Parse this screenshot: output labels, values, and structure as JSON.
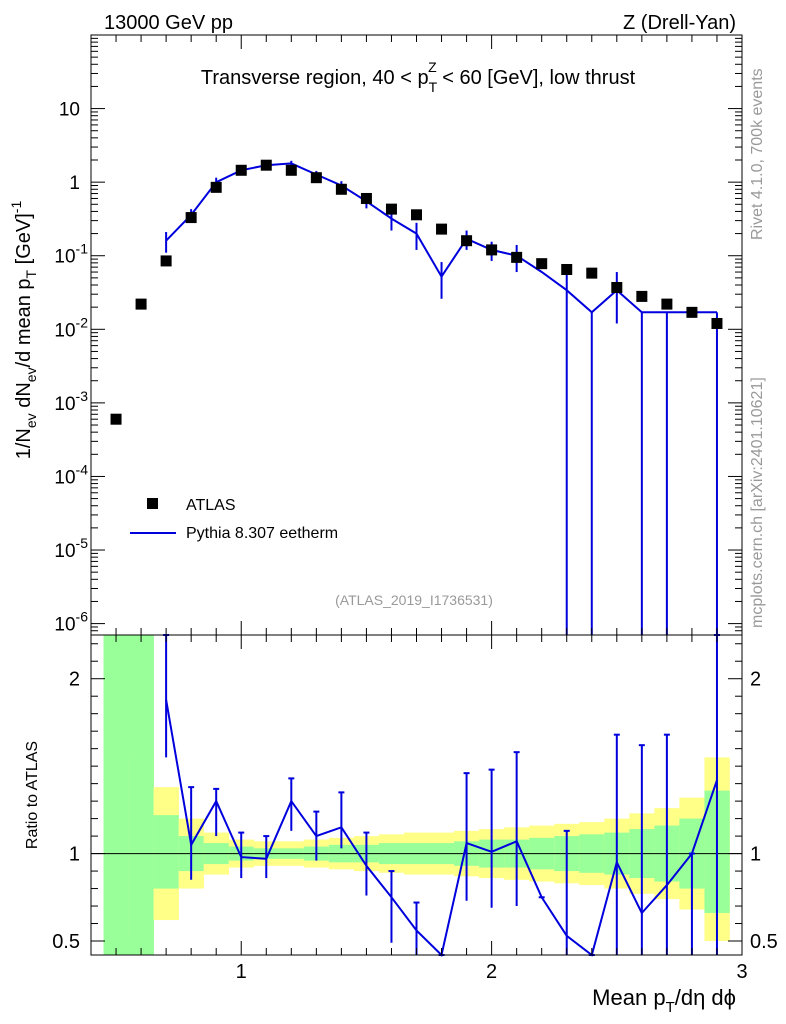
{
  "header": {
    "left": "13000 GeV pp",
    "right": "Z (Drell-Yan)"
  },
  "side_labels": {
    "rivet": "Rivet 4.1.0,  700k events",
    "mcplots": "mcplots.cern.ch [arXiv:2401.10621]"
  },
  "chart_data": [
    {
      "type": "scatter",
      "panel": "main",
      "title": "Transverse region, 40 < p_T^Z < 60 [GeV], low thrust",
      "title_parts": {
        "pre": "Transverse region, 40 < p",
        "sub": "T",
        "sup": "Z",
        "post": " < 60 [GeV], low thrust"
      },
      "watermark": "(ATLAS_2019_I1736531)",
      "ylabel": "1/N_ev dN_ev/d mean p_T [GeV]^-1",
      "ylabel_parts": {
        "a": "1/N",
        "a_sub": "ev",
        "b": " dN",
        "b_sub": "ev",
        "c": "/d mean p",
        "c_sub": "T",
        "d": " [GeV]",
        "d_sup": "-1"
      },
      "xlim": [
        0.4,
        3.0
      ],
      "ylim": [
        7e-07,
        100
      ],
      "yscale": "log",
      "ytick_labels": [
        {
          "base": "10",
          "exp": "-6"
        },
        {
          "base": "10",
          "exp": "-5"
        },
        {
          "base": "10",
          "exp": "-4"
        },
        {
          "base": "10",
          "exp": "-3"
        },
        {
          "base": "10",
          "exp": "-2"
        },
        {
          "base": "10",
          "exp": "-1"
        },
        {
          "base": "1",
          "exp": ""
        },
        {
          "base": "10",
          "exp": ""
        }
      ],
      "legend": [
        {
          "name": "ATLAS",
          "marker": "square",
          "color": "#000000"
        },
        {
          "name": "Pythia 8.307 eetherm",
          "marker": "line",
          "color": "#0000dd"
        }
      ],
      "series": [
        {
          "name": "ATLAS",
          "x": [
            0.5,
            0.6,
            0.7,
            0.8,
            0.9,
            1.0,
            1.1,
            1.2,
            1.3,
            1.4,
            1.5,
            1.6,
            1.7,
            1.8,
            1.9,
            2.0,
            2.1,
            2.2,
            2.3,
            2.4,
            2.5,
            2.6,
            2.7,
            2.8,
            2.9
          ],
          "y": [
            0.0006,
            0.022,
            0.085,
            0.33,
            0.85,
            1.45,
            1.7,
            1.45,
            1.15,
            0.8,
            0.6,
            0.43,
            0.36,
            0.23,
            0.16,
            0.12,
            0.095,
            0.078,
            0.065,
            0.058,
            0.037,
            0.028,
            0.022,
            0.017,
            0.012
          ]
        },
        {
          "name": "Pythia 8.307 eetherm",
          "x": [
            0.7,
            0.8,
            0.9,
            1.0,
            1.1,
            1.2,
            1.3,
            1.4,
            1.5,
            1.6,
            1.7,
            1.8,
            1.9,
            2.0,
            2.1,
            2.2,
            2.3,
            2.4,
            2.5,
            2.6,
            2.7,
            2.8,
            2.9
          ],
          "y": [
            0.16,
            0.36,
            1.0,
            1.45,
            1.7,
            1.8,
            1.27,
            0.9,
            0.55,
            0.32,
            0.2,
            0.052,
            0.17,
            0.12,
            0.1,
            0.06,
            0.034,
            0.017,
            0.034,
            0.017,
            0.017,
            0.017,
            0.017
          ],
          "err_lo": [
            0.16,
            0.36,
            1.0,
            1.45,
            1.7,
            1.8,
            1.27,
            0.9,
            0.55,
            0.32,
            0.2,
            0.052,
            0.17,
            0.12,
            0.1,
            0.06,
            0.034,
            0.017,
            0.034,
            0.017,
            0.017,
            0.017,
            0.017
          ],
          "err_hi": [
            0.21,
            0.43,
            1.15,
            1.6,
            1.85,
            1.95,
            1.42,
            1.03,
            0.66,
            0.42,
            0.28,
            0.082,
            0.22,
            0.155,
            0.14,
            0.06,
            0.075,
            0.017,
            0.06,
            0.017,
            0.017,
            0.017,
            0.017
          ],
          "err_lo_val": [
            0.11,
            0.29,
            0.87,
            1.3,
            1.55,
            1.65,
            1.12,
            0.77,
            0.44,
            0.22,
            0.12,
            0.026,
            0.12,
            0.085,
            0.06,
            0.06,
            1e-07,
            1e-07,
            0.012,
            1e-07,
            1e-07,
            0.017,
            1e-07
          ]
        }
      ]
    },
    {
      "type": "line",
      "panel": "ratio",
      "ylabel": "Ratio to ATLAS",
      "xlabel": "Mean p_T/dη dϕ",
      "xlabel_parts": {
        "pre": "Mean p",
        "sub": "T",
        "post": "/dη dϕ"
      },
      "xlim": [
        0.4,
        3.0
      ],
      "ylim": [
        0.42,
        2.25
      ],
      "xtick_labels": [
        "1",
        "2",
        "3"
      ],
      "ytick_labels": [
        "0.5",
        "1",
        "2"
      ],
      "bands": {
        "x_edges": [
          0.45,
          0.55,
          0.65,
          0.75,
          0.85,
          0.95,
          1.05,
          1.15,
          1.25,
          1.35,
          1.45,
          1.55,
          1.65,
          1.75,
          1.85,
          1.95,
          2.05,
          2.15,
          2.25,
          2.35,
          2.45,
          2.55,
          2.65,
          2.75,
          2.85,
          2.95
        ],
        "green_lo": [
          0.42,
          0.42,
          0.8,
          0.9,
          0.94,
          0.96,
          0.97,
          0.97,
          0.96,
          0.95,
          0.95,
          0.94,
          0.94,
          0.94,
          0.93,
          0.92,
          0.92,
          0.91,
          0.9,
          0.89,
          0.88,
          0.86,
          0.84,
          0.8,
          0.66
        ],
        "green_hi": [
          2.25,
          2.25,
          1.22,
          1.1,
          1.06,
          1.04,
          1.03,
          1.03,
          1.04,
          1.05,
          1.05,
          1.06,
          1.06,
          1.06,
          1.07,
          1.08,
          1.08,
          1.09,
          1.1,
          1.11,
          1.12,
          1.14,
          1.16,
          1.2,
          1.36
        ],
        "yellow_lo": [
          0.42,
          0.53,
          0.62,
          0.8,
          0.88,
          0.92,
          0.93,
          0.93,
          0.92,
          0.91,
          0.9,
          0.89,
          0.88,
          0.88,
          0.87,
          0.86,
          0.85,
          0.84,
          0.83,
          0.82,
          0.8,
          0.77,
          0.74,
          0.68,
          0.5
        ],
        "yellow_hi": [
          2.25,
          1.55,
          1.38,
          1.2,
          1.12,
          1.08,
          1.07,
          1.07,
          1.08,
          1.09,
          1.1,
          1.11,
          1.12,
          1.12,
          1.13,
          1.14,
          1.15,
          1.16,
          1.17,
          1.18,
          1.2,
          1.23,
          1.26,
          1.32,
          1.55
        ]
      },
      "series": [
        {
          "name": "Pythia 8.307 eetherm / ATLAS",
          "x": [
            0.7,
            0.8,
            0.9,
            1.0,
            1.1,
            1.2,
            1.3,
            1.4,
            1.5,
            1.6,
            1.7,
            1.8,
            1.9,
            2.0,
            2.1,
            2.2,
            2.3,
            2.4,
            2.5,
            2.6,
            2.7,
            2.8,
            2.9
          ],
          "y": [
            1.88,
            1.05,
            1.3,
            0.98,
            0.97,
            1.3,
            1.1,
            1.15,
            0.93,
            0.75,
            0.56,
            0.22,
            1.06,
            1.01,
            1.07,
            0.75,
            0.53,
            0.29,
            0.95,
            0.66,
            0.82,
            1.0,
            1.42
          ],
          "err_lo": [
            1.55,
            0.85,
            1.1,
            0.86,
            0.86,
            1.13,
            0.96,
            1.03,
            0.76,
            0.49,
            0.34,
            0.1,
            0.73,
            0.69,
            0.7,
            0.75,
            0.42,
            0.42,
            0.42,
            0.42,
            0.42,
            0.42,
            0.42
          ],
          "err_hi": [
            2.25,
            1.38,
            1.37,
            1.12,
            1.1,
            1.43,
            1.24,
            1.35,
            1.12,
            0.9,
            0.72,
            0.42,
            1.46,
            1.48,
            1.58,
            0.75,
            1.13,
            0.42,
            1.68,
            1.62,
            1.68,
            1.0,
            2.25
          ]
        }
      ]
    }
  ]
}
